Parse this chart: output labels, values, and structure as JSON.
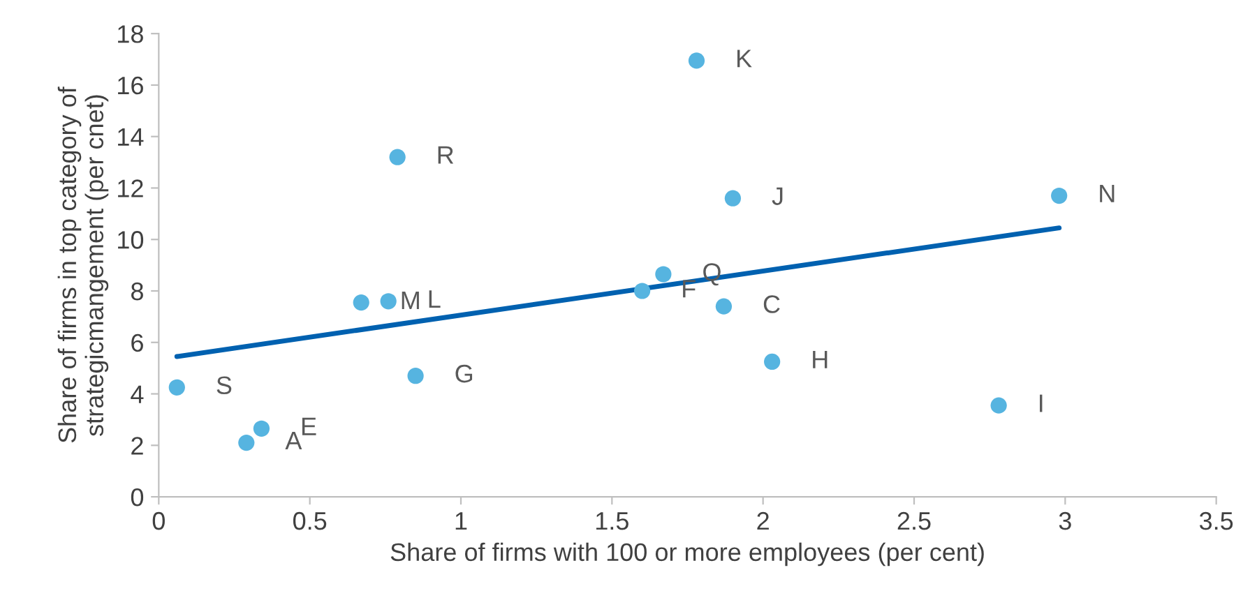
{
  "chart_data": {
    "type": "scatter",
    "xlabel": "Share of firms with 100 or more employees (per cent)",
    "ylabel": "Share of firms in top category of\nstrategicmangement (per cnet)",
    "xlim": [
      0,
      3.5
    ],
    "xticks": [
      0,
      0.5,
      1,
      1.5,
      2,
      2.5,
      3,
      3.5
    ],
    "ylim": [
      0,
      18
    ],
    "yticks": [
      0,
      2,
      4,
      6,
      8,
      10,
      12,
      14,
      16,
      18
    ],
    "grid": false,
    "legend": false,
    "series": [
      {
        "marker": "circle",
        "color": "#56b4e0",
        "x": [
          1.78,
          0.79,
          1.9,
          2.98,
          1.67,
          1.6,
          1.87,
          0.67,
          0.76,
          2.03,
          0.85,
          0.06,
          2.78,
          0.34,
          0.29
        ],
        "values": [
          16.95,
          13.2,
          11.6,
          11.7,
          8.65,
          8.0,
          7.4,
          7.55,
          7.6,
          5.25,
          4.7,
          4.25,
          3.55,
          2.65,
          2.1
        ]
      },
      {
        "type": "line",
        "marker": "none",
        "color": "#0061b0",
        "x": [
          0.06,
          2.98
        ],
        "values": [
          5.45,
          10.45
        ]
      }
    ],
    "annotations": [
      {
        "text": "K",
        "x": 1.78,
        "y": 16.95
      },
      {
        "text": "R",
        "x": 0.79,
        "y": 13.2
      },
      {
        "text": "J",
        "x": 1.9,
        "y": 11.6
      },
      {
        "text": "N",
        "x": 2.98,
        "y": 11.7
      },
      {
        "text": "Q",
        "x": 1.67,
        "y": 8.65
      },
      {
        "text": "F",
        "x": 1.6,
        "y": 8.0
      },
      {
        "text": "C",
        "x": 1.87,
        "y": 7.4
      },
      {
        "text": "M",
        "x": 0.67,
        "y": 7.55
      },
      {
        "text": "L",
        "x": 0.76,
        "y": 7.6
      },
      {
        "text": "H",
        "x": 2.03,
        "y": 5.25
      },
      {
        "text": "G",
        "x": 0.85,
        "y": 4.7
      },
      {
        "text": "S",
        "x": 0.06,
        "y": 4.25
      },
      {
        "text": "I",
        "x": 2.78,
        "y": 3.55
      },
      {
        "text": "E",
        "x": 0.34,
        "y": 2.65
      },
      {
        "text": "A",
        "x": 0.29,
        "y": 2.1
      }
    ]
  }
}
